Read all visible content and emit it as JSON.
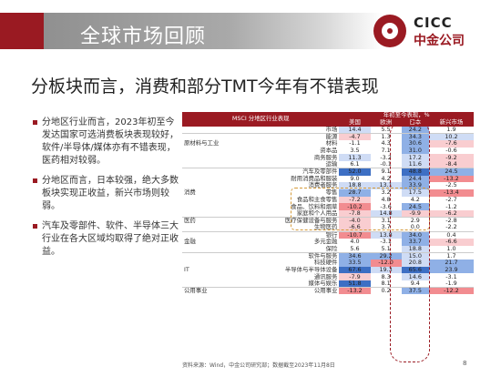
{
  "header": {
    "title": "全球市场回顾"
  },
  "logo": {
    "en": "CICC",
    "cn": "中金公司"
  },
  "subtitle": "分板块而言，消费和部分TMT今年有不错表现",
  "bullets": [
    "分地区行业而言，2023年初至今发达国家可选消费板块表现较好，软件/半导体/媒体亦有不错表现，医药相对较弱。",
    "分地区而言，日本较强，绝大多数板块实现正收益，新兴市场则较弱。",
    "汽车及零部件、软件、半导体三大行业在各大区域均取得了绝对正收益。"
  ],
  "table": {
    "header_left": "MSCI 分地区行业表现",
    "header_group": "年初至今表现，%",
    "columns": [
      "美国",
      "欧洲",
      "日本",
      "新兴市场"
    ],
    "rows": [
      {
        "cat": "",
        "sub": "市场",
        "vals": [
          "14.4",
          "5.5",
          "24.2",
          "1.9"
        ],
        "cls": [
          "bg-blue1",
          "bg-none",
          "bg-blue2",
          "bg-none"
        ]
      },
      {
        "cat": "",
        "sub": "能源",
        "vals": [
          "-4.7",
          "1.3",
          "34.3",
          "10.2"
        ],
        "cls": [
          "bg-red1",
          "bg-none",
          "bg-blue2",
          "bg-blue1"
        ]
      },
      {
        "cat": "原材料与工业",
        "sub": "材料",
        "vals": [
          "-1.1",
          "4.3",
          "30.6",
          "-7.6"
        ],
        "cls": [
          "bg-none",
          "bg-none",
          "bg-blue2",
          "bg-red1"
        ]
      },
      {
        "cat": "",
        "sub": "资本品",
        "vals": [
          "3.5",
          "7.1",
          "31.0",
          "-0.6"
        ],
        "cls": [
          "bg-none",
          "bg-none",
          "bg-blue2",
          "bg-none"
        ]
      },
      {
        "cat": "",
        "sub": "商务服务",
        "vals": [
          "11.3",
          "-3.2",
          "17.2",
          "-9.2"
        ],
        "cls": [
          "bg-blue1",
          "bg-none",
          "bg-blue1",
          "bg-red1"
        ]
      },
      {
        "cat": "",
        "sub": "运输",
        "vals": [
          "6.1",
          "-0.1",
          "11.6",
          "-8.4"
        ],
        "cls": [
          "bg-none",
          "bg-none",
          "bg-blue1",
          "bg-red1"
        ]
      },
      {
        "cat": "",
        "sub": "汽车及零部件",
        "vals": [
          "52.0",
          "9.1",
          "48.8",
          "24.5"
        ],
        "cls": [
          "bg-blue3",
          "bg-none",
          "bg-blue3",
          "bg-blue2"
        ]
      },
      {
        "cat": "",
        "sub": "耐用消费品和服装",
        "vals": [
          "9.0",
          "4.2",
          "24.4",
          "-13.2"
        ],
        "cls": [
          "bg-none",
          "bg-none",
          "bg-blue2",
          "bg-red2"
        ]
      },
      {
        "cat": "",
        "sub": "消费者服务",
        "vals": [
          "18.8",
          "13.1",
          "33.9",
          "-2.5"
        ],
        "cls": [
          "bg-blue1",
          "bg-blue1",
          "bg-blue2",
          "bg-none"
        ]
      },
      {
        "cat": "消费",
        "sub": "零售",
        "vals": [
          "28.7",
          "3.2",
          "17.5",
          "-13.4"
        ],
        "cls": [
          "bg-blue2",
          "bg-none",
          "bg-blue1",
          "bg-red2"
        ]
      },
      {
        "cat": "",
        "sub": "食品和主食零售",
        "vals": [
          "-7.2",
          "4.8",
          "4.2",
          "-2.7"
        ],
        "cls": [
          "bg-red1",
          "bg-none",
          "bg-none",
          "bg-none"
        ]
      },
      {
        "cat": "",
        "sub": "食品、饮料和烟草",
        "vals": [
          "-10.2",
          "-3.6",
          "24.5",
          "-1.2"
        ],
        "cls": [
          "bg-red2",
          "bg-none",
          "bg-blue2",
          "bg-none"
        ]
      },
      {
        "cat": "",
        "sub": "家庭和个人用品",
        "vals": [
          "-7.8",
          "14.8",
          "-9.9",
          "-6.2"
        ],
        "cls": [
          "bg-red1",
          "bg-blue1",
          "bg-red1",
          "bg-red1"
        ]
      },
      {
        "cat": "医药",
        "sub": "医疗保健设备与服务",
        "vals": [
          "-4.0",
          "3.1",
          "2.9",
          "-2.8"
        ],
        "cls": [
          "bg-red1",
          "bg-none",
          "bg-none",
          "bg-none"
        ]
      },
      {
        "cat": "",
        "sub": "生物医药",
        "vals": [
          "-6.6",
          "3.7",
          "0.0",
          "-2.2"
        ],
        "cls": [
          "bg-red1",
          "bg-none",
          "bg-none",
          "bg-none"
        ]
      },
      {
        "cat": "",
        "sub": "银行",
        "vals": [
          "-10.7",
          "13.8",
          "34.0",
          "0.4"
        ],
        "cls": [
          "bg-red2",
          "bg-blue1",
          "bg-blue2",
          "bg-none"
        ]
      },
      {
        "cat": "金融",
        "sub": "多元金融",
        "vals": [
          "4.0",
          "-3.1",
          "33.7",
          "-6.6"
        ],
        "cls": [
          "bg-none",
          "bg-none",
          "bg-blue2",
          "bg-red1"
        ]
      },
      {
        "cat": "",
        "sub": "保险",
        "vals": [
          "5.6",
          "5.1",
          "18.8",
          "1.0"
        ],
        "cls": [
          "bg-none",
          "bg-none",
          "bg-blue1",
          "bg-none"
        ]
      },
      {
        "cat": "",
        "sub": "软件与服务",
        "vals": [
          "34.6",
          "29.2",
          "15.0",
          "1.7"
        ],
        "cls": [
          "bg-blue2",
          "bg-blue2",
          "bg-blue1",
          "bg-none"
        ]
      },
      {
        "cat": "",
        "sub": "科技硬件",
        "vals": [
          "33.5",
          "-12.0",
          "20.8",
          "21.7"
        ],
        "cls": [
          "bg-blue2",
          "bg-red2",
          "bg-blue1",
          "bg-blue2"
        ]
      },
      {
        "cat": "IT",
        "sub": "半导体与半导体设备",
        "vals": [
          "67.6",
          "19.3",
          "65.6",
          "23.9"
        ],
        "cls": [
          "bg-blue3",
          "bg-blue1",
          "bg-blue3",
          "bg-blue2"
        ]
      },
      {
        "cat": "",
        "sub": "通讯服务",
        "vals": [
          "-7.9",
          "8.3",
          "14.6",
          "-3.1"
        ],
        "cls": [
          "bg-red1",
          "bg-none",
          "bg-blue1",
          "bg-none"
        ]
      },
      {
        "cat": "",
        "sub": "媒体与娱乐",
        "vals": [
          "51.8",
          "8.1",
          "9.4",
          "-1.9"
        ],
        "cls": [
          "bg-blue3",
          "bg-none",
          "bg-none",
          "bg-none"
        ]
      },
      {
        "cat": "公用事业",
        "sub": "公用事业",
        "vals": [
          "-13.2",
          "0.2",
          "37.5",
          "-12.2"
        ],
        "cls": [
          "bg-red2",
          "bg-none",
          "bg-blue2",
          "bg-red2"
        ]
      }
    ]
  },
  "source": "资料来源：Wind，中金公司研究部；数据截至2023年11月8日",
  "page_number": "8"
}
